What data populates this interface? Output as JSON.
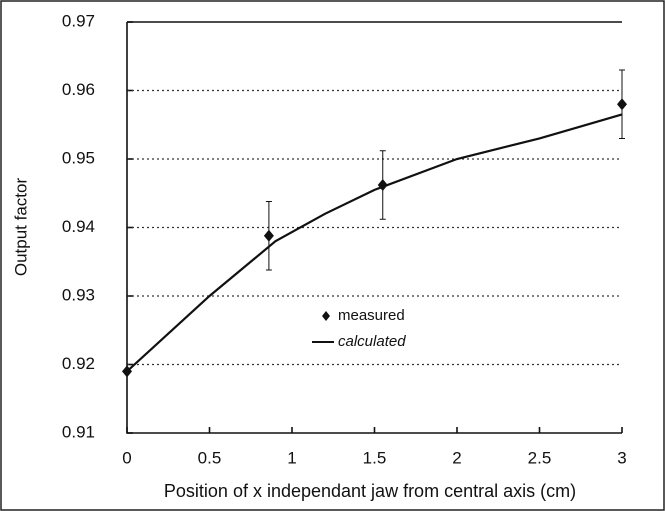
{
  "chart_data": {
    "type": "line",
    "x_label": "Position of x independant jaw from central axis (cm)",
    "y_label": "Output factor",
    "xlim": [
      0,
      3
    ],
    "xticks": [
      0,
      0.5,
      1,
      1.5,
      2,
      2.5,
      3
    ],
    "ylim": [
      0.91,
      0.97
    ],
    "yticks": [
      0.91,
      0.92,
      0.93,
      0.94,
      0.95,
      0.96,
      0.97
    ],
    "grid": true,
    "legend": "center",
    "series": [
      {
        "name": "measured",
        "color": "#111111",
        "marker": "diamond",
        "x": [
          0,
          0.86,
          1.55,
          3
        ],
        "values": [
          0.919,
          0.9388,
          0.9462,
          0.958
        ],
        "errors": [
          0,
          0.005,
          0.005,
          0.005
        ]
      },
      {
        "name": "calculated",
        "color": "#111111",
        "x": [
          0,
          0.5,
          0.9,
          1.2,
          1.5,
          2,
          2.5,
          3
        ],
        "values": [
          0.919,
          0.93,
          0.938,
          0.942,
          0.9455,
          0.95,
          0.953,
          0.9565
        ]
      }
    ]
  }
}
